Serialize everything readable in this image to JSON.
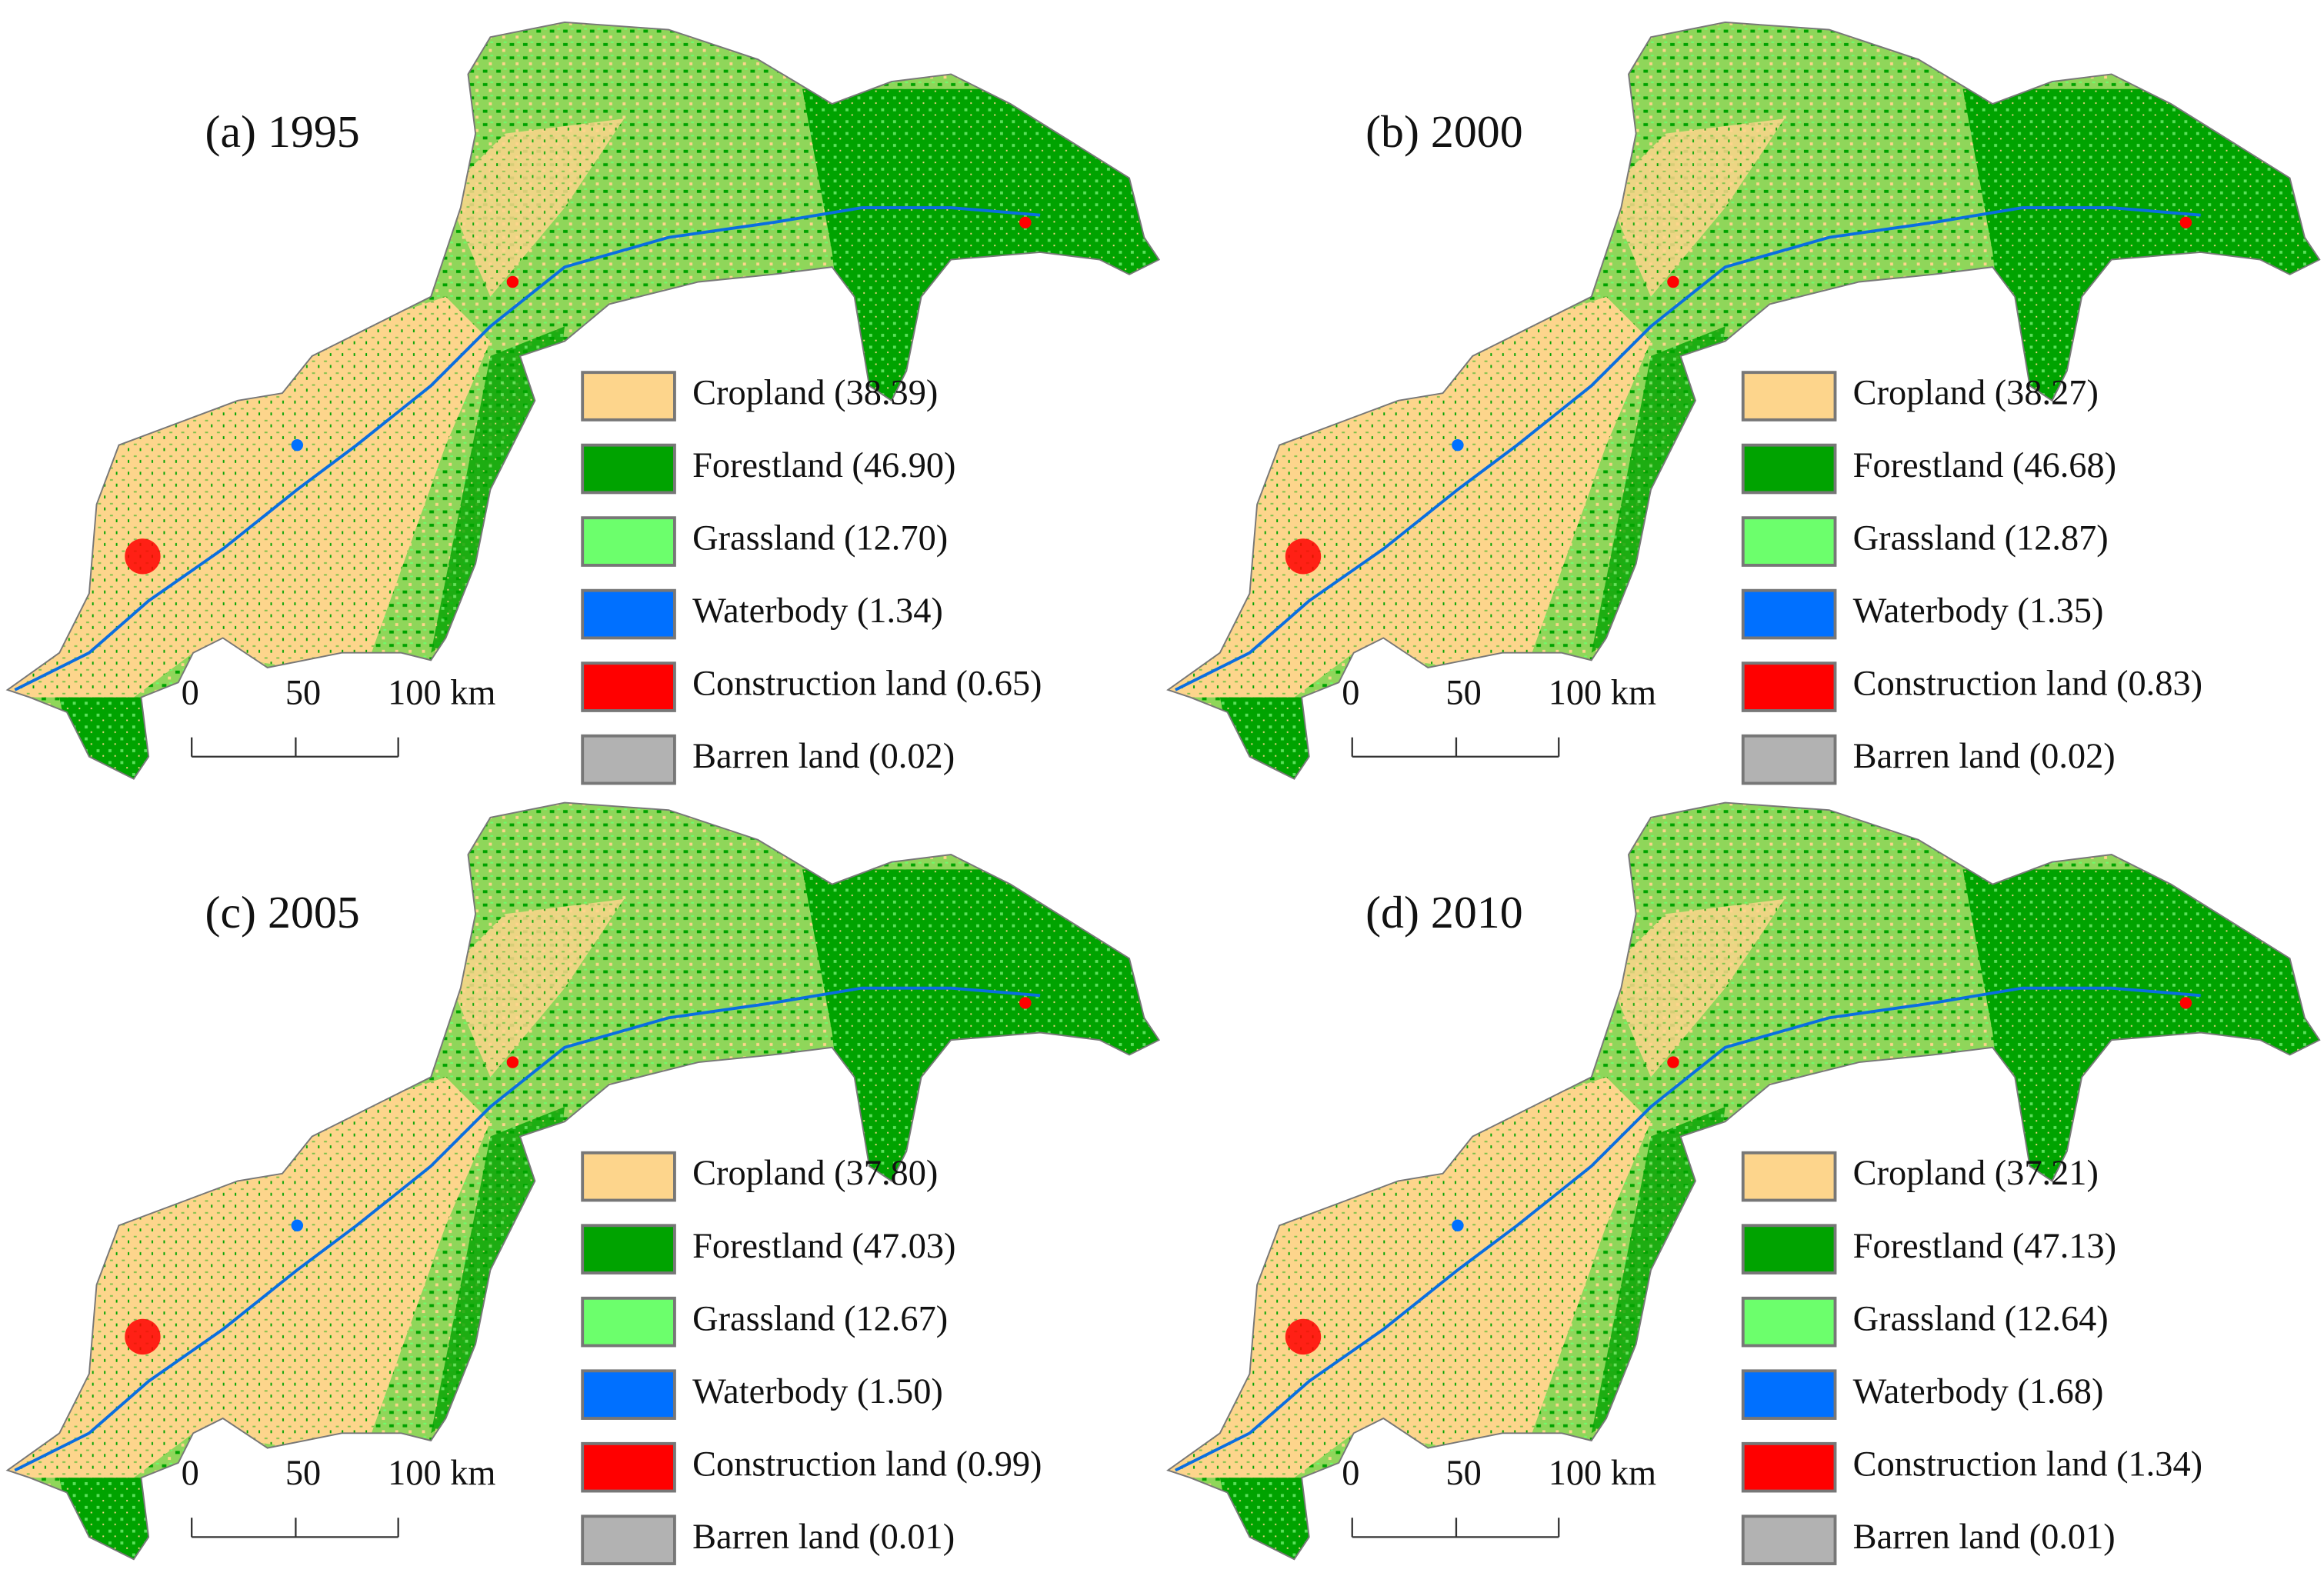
{
  "panels": [
    {
      "title": "(a) 1995",
      "legend": [
        {
          "label": "Cropland (38.39)",
          "color": "#fdd58c"
        },
        {
          "label": "Forestland (46.90)",
          "color": "#00a300"
        },
        {
          "label": "Grassland (12.70)",
          "color": "#6cff6c"
        },
        {
          "label": "Waterbody (1.34)",
          "color": "#0070ff"
        },
        {
          "label": "Construction land (0.65)",
          "color": "#ff0000"
        },
        {
          "label": "Barren land (0.02)",
          "color": "#b2b2b2"
        }
      ],
      "scale_bar": [
        "0",
        "50",
        "100 km"
      ]
    },
    {
      "title": "(b) 2000",
      "legend": [
        {
          "label": "Cropland (38.27)",
          "color": "#fdd58c"
        },
        {
          "label": "Forestland (46.68)",
          "color": "#00a300"
        },
        {
          "label": "Grassland (12.87)",
          "color": "#6cff6c"
        },
        {
          "label": "Waterbody (1.35)",
          "color": "#0070ff"
        },
        {
          "label": "Construction land (0.83)",
          "color": "#ff0000"
        },
        {
          "label": "Barren land (0.02)",
          "color": "#b2b2b2"
        }
      ],
      "scale_bar": [
        "0",
        "50",
        "100 km"
      ]
    },
    {
      "title": "(c) 2005",
      "legend": [
        {
          "label": "Cropland (37.80)",
          "color": "#fdd58c"
        },
        {
          "label": "Forestland (47.03)",
          "color": "#00a300"
        },
        {
          "label": "Grassland (12.67)",
          "color": "#6cff6c"
        },
        {
          "label": "Waterbody (1.50)",
          "color": "#0070ff"
        },
        {
          "label": "Construction land (0.99)",
          "color": "#ff0000"
        },
        {
          "label": "Barren land (0.01)",
          "color": "#b2b2b2"
        }
      ],
      "scale_bar": [
        "0",
        "50",
        "100 km"
      ]
    },
    {
      "title": "(d) 2010",
      "legend": [
        {
          "label": "Cropland (37.21)",
          "color": "#fdd58c"
        },
        {
          "label": "Forestland (47.13)",
          "color": "#00a300"
        },
        {
          "label": "Grassland (12.64)",
          "color": "#6cff6c"
        },
        {
          "label": "Waterbody (1.68)",
          "color": "#0070ff"
        },
        {
          "label": "Construction land (1.34)",
          "color": "#ff0000"
        },
        {
          "label": "Barren land (0.01)",
          "color": "#b2b2b2"
        }
      ],
      "scale_bar": [
        "0",
        "50",
        "100 km"
      ]
    }
  ]
}
